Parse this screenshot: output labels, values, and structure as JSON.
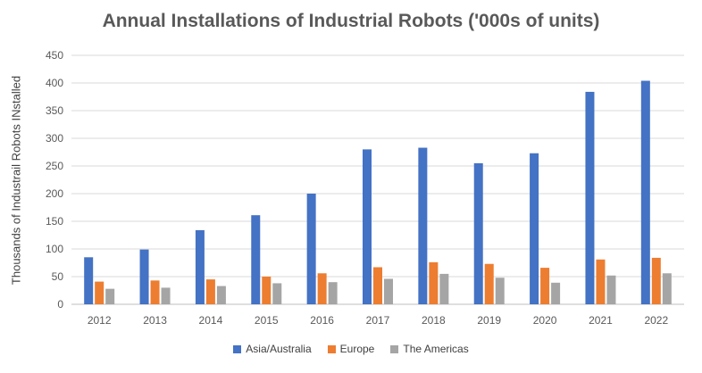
{
  "chart_data": {
    "type": "bar",
    "title": "Annual Installations of Industrial Robots ('000s of units)",
    "xlabel": "",
    "ylabel": "Thousands of Industrail Robots INstalled",
    "ylim": [
      0,
      450
    ],
    "yticks": [
      0,
      50,
      100,
      150,
      200,
      250,
      300,
      350,
      400,
      450
    ],
    "grid": true,
    "legend_position": "bottom",
    "categories": [
      "2012",
      "2013",
      "2014",
      "2015",
      "2016",
      "2017",
      "2018",
      "2019",
      "2020",
      "2021",
      "2022"
    ],
    "series": [
      {
        "name": "Asia/Australia",
        "color": "#4472C4",
        "values": [
          85,
          99,
          134,
          161,
          200,
          280,
          283,
          255,
          273,
          384,
          404
        ]
      },
      {
        "name": "Europe",
        "color": "#ED7D31",
        "values": [
          41,
          43,
          45,
          50,
          56,
          67,
          76,
          73,
          66,
          81,
          84
        ]
      },
      {
        "name": "The Americas",
        "color": "#A5A5A5",
        "values": [
          28,
          30,
          33,
          38,
          40,
          46,
          55,
          48,
          39,
          52,
          56
        ]
      }
    ]
  }
}
